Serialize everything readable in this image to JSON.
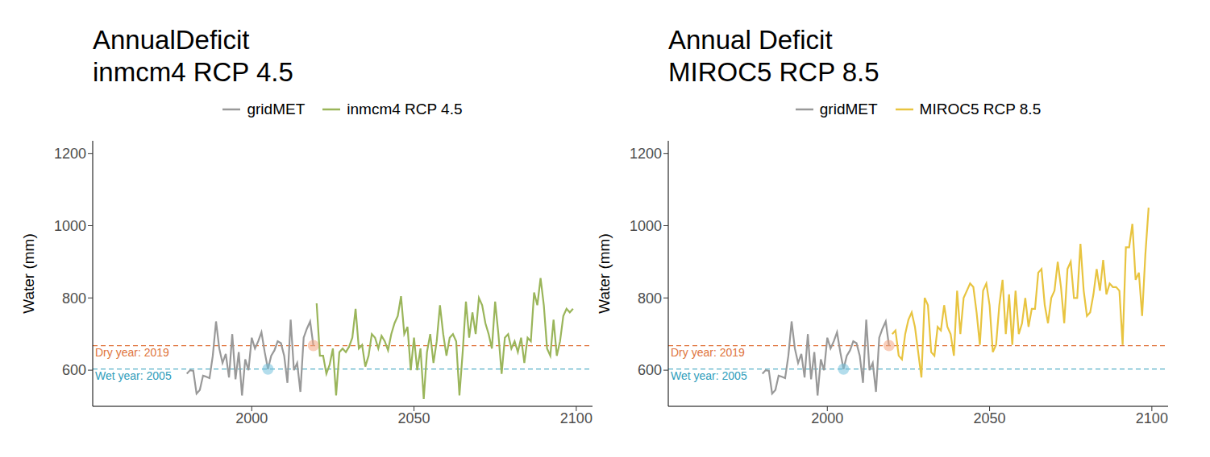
{
  "chart_data": [
    {
      "type": "line",
      "title": "AnnualDeficit",
      "subtitle": "inmcm4 RCP 4.5",
      "y_label": "Water (mm)",
      "legend": "top",
      "x": [
        1980,
        1981,
        1982,
        1983,
        1984,
        1985,
        1986,
        1987,
        1988,
        1989,
        1990,
        1991,
        1992,
        1993,
        1994,
        1995,
        1996,
        1997,
        1998,
        1999,
        2000,
        2001,
        2002,
        2003,
        2004,
        2005,
        2006,
        2007,
        2008,
        2009,
        2010,
        2011,
        2012,
        2013,
        2014,
        2015,
        2016,
        2017,
        2018,
        2019,
        2020,
        2021,
        2022,
        2023,
        2024,
        2025,
        2026,
        2027,
        2028,
        2029,
        2030,
        2031,
        2032,
        2033,
        2034,
        2035,
        2036,
        2037,
        2038,
        2039,
        2040,
        2041,
        2042,
        2043,
        2044,
        2045,
        2046,
        2047,
        2048,
        2049,
        2050,
        2051,
        2052,
        2053,
        2054,
        2055,
        2056,
        2057,
        2058,
        2059,
        2060,
        2061,
        2062,
        2063,
        2064,
        2065,
        2066,
        2067,
        2068,
        2069,
        2070,
        2071,
        2072,
        2073,
        2074,
        2075,
        2076,
        2077,
        2078,
        2079,
        2080,
        2081,
        2082,
        2083,
        2084,
        2085,
        2086,
        2087,
        2088,
        2089,
        2090,
        2091,
        2092,
        2093,
        2094,
        2095,
        2096,
        2097,
        2098,
        2099
      ],
      "series": [
        {
          "name": "gridMET",
          "color": "#999999",
          "values": [
            590,
            600,
            598,
            535,
            545,
            585,
            582,
            578,
            640,
            735,
            660,
            620,
            645,
            580,
            700,
            575,
            650,
            530,
            630,
            600,
            690,
            660,
            680,
            705,
            650,
            603,
            640,
            655,
            680,
            675,
            640,
            565,
            740,
            600,
            620,
            540,
            690,
            715,
            735,
            668,
            null,
            null,
            null,
            null,
            null,
            null,
            null,
            null,
            null,
            null,
            null,
            null,
            null,
            null,
            null,
            null,
            null,
            null,
            null,
            null,
            null,
            null,
            null,
            null,
            null,
            null,
            null,
            null,
            null,
            null,
            null,
            null,
            null,
            null,
            null,
            null,
            null,
            null,
            null,
            null,
            null,
            null,
            null,
            null,
            null,
            null,
            null,
            null,
            null,
            null,
            null,
            null,
            null,
            null,
            null,
            null,
            null,
            null,
            null,
            null,
            null,
            null,
            null,
            null,
            null,
            null,
            null,
            null,
            null,
            null,
            null,
            null,
            null,
            null,
            null,
            null,
            null,
            null,
            null,
            null
          ]
        },
        {
          "name": "inmcm4 RCP 4.5",
          "color": "#9ab55a",
          "values": [
            null,
            null,
            null,
            null,
            null,
            null,
            null,
            null,
            null,
            null,
            null,
            null,
            null,
            null,
            null,
            null,
            null,
            null,
            null,
            null,
            null,
            null,
            null,
            null,
            null,
            null,
            null,
            null,
            null,
            null,
            null,
            null,
            null,
            null,
            null,
            null,
            null,
            null,
            null,
            null,
            785,
            640,
            640,
            590,
            615,
            660,
            530,
            650,
            660,
            650,
            665,
            690,
            770,
            660,
            670,
            610,
            640,
            700,
            690,
            660,
            695,
            680,
            655,
            700,
            730,
            750,
            805,
            700,
            720,
            600,
            690,
            600,
            660,
            520,
            650,
            700,
            620,
            680,
            780,
            700,
            640,
            690,
            700,
            680,
            530,
            650,
            790,
            690,
            760,
            700,
            800,
            780,
            730,
            700,
            660,
            790,
            700,
            590,
            690,
            700,
            660,
            680,
            650,
            690,
            620,
            690,
            680,
            815,
            780,
            855,
            780,
            660,
            640,
            740,
            640,
            680,
            750,
            770,
            760,
            770
          ]
        }
      ],
      "xlim": [
        1951,
        2105
      ],
      "xticks": [
        2000,
        2050,
        2100
      ],
      "ylim": [
        500,
        1235
      ],
      "yticks": [
        600,
        800,
        1000,
        1200
      ],
      "reference_lines": [
        {
          "label": "Dry year: 2019",
          "value": 668,
          "color": "#e0743c",
          "line_style": "dashed"
        },
        {
          "label": "Wet year: 2005",
          "value": 603,
          "color": "#2f9dbb",
          "line_style": "dashed"
        }
      ],
      "highlights": [
        {
          "x": 2019,
          "y": 668,
          "color": "#f4a582"
        },
        {
          "x": 2005,
          "y": 603,
          "color": "#74c1dd"
        }
      ]
    },
    {
      "type": "line",
      "title": "Annual Deficit",
      "subtitle": "MIROC5 RCP 8.5",
      "y_label": "Water (mm)",
      "legend": "top",
      "x": [
        1980,
        1981,
        1982,
        1983,
        1984,
        1985,
        1986,
        1987,
        1988,
        1989,
        1990,
        1991,
        1992,
        1993,
        1994,
        1995,
        1996,
        1997,
        1998,
        1999,
        2000,
        2001,
        2002,
        2003,
        2004,
        2005,
        2006,
        2007,
        2008,
        2009,
        2010,
        2011,
        2012,
        2013,
        2014,
        2015,
        2016,
        2017,
        2018,
        2019,
        2020,
        2021,
        2022,
        2023,
        2024,
        2025,
        2026,
        2027,
        2028,
        2029,
        2030,
        2031,
        2032,
        2033,
        2034,
        2035,
        2036,
        2037,
        2038,
        2039,
        2040,
        2041,
        2042,
        2043,
        2044,
        2045,
        2046,
        2047,
        2048,
        2049,
        2050,
        2051,
        2052,
        2053,
        2054,
        2055,
        2056,
        2057,
        2058,
        2059,
        2060,
        2061,
        2062,
        2063,
        2064,
        2065,
        2066,
        2067,
        2068,
        2069,
        2070,
        2071,
        2072,
        2073,
        2074,
        2075,
        2076,
        2077,
        2078,
        2079,
        2080,
        2081,
        2082,
        2083,
        2084,
        2085,
        2086,
        2087,
        2088,
        2089,
        2090,
        2091,
        2092,
        2093,
        2094,
        2095,
        2096,
        2097,
        2098,
        2099
      ],
      "series": [
        {
          "name": "gridMET",
          "color": "#999999",
          "values": [
            590,
            600,
            598,
            535,
            545,
            585,
            582,
            578,
            640,
            735,
            660,
            620,
            645,
            580,
            700,
            575,
            650,
            530,
            630,
            600,
            690,
            660,
            680,
            705,
            650,
            603,
            640,
            655,
            680,
            675,
            640,
            565,
            740,
            600,
            620,
            540,
            690,
            715,
            735,
            668,
            null,
            null,
            null,
            null,
            null,
            null,
            null,
            null,
            null,
            null,
            null,
            null,
            null,
            null,
            null,
            null,
            null,
            null,
            null,
            null,
            null,
            null,
            null,
            null,
            null,
            null,
            null,
            null,
            null,
            null,
            null,
            null,
            null,
            null,
            null,
            null,
            null,
            null,
            null,
            null,
            null,
            null,
            null,
            null,
            null,
            null,
            null,
            null,
            null,
            null,
            null,
            null,
            null,
            null,
            null,
            null,
            null,
            null,
            null,
            null,
            null,
            null,
            null,
            null,
            null,
            null,
            null,
            null,
            null,
            null,
            null,
            null,
            null,
            null,
            null,
            null,
            null,
            null,
            null,
            null
          ]
        },
        {
          "name": "MIROC5 RCP 8.5",
          "color": "#e8c440",
          "values": [
            null,
            null,
            null,
            null,
            null,
            null,
            null,
            null,
            null,
            null,
            null,
            null,
            null,
            null,
            null,
            null,
            null,
            null,
            null,
            null,
            null,
            null,
            null,
            null,
            null,
            null,
            null,
            null,
            null,
            null,
            null,
            null,
            null,
            null,
            null,
            null,
            null,
            null,
            null,
            null,
            700,
            710,
            640,
            630,
            700,
            740,
            760,
            720,
            650,
            580,
            800,
            780,
            650,
            640,
            720,
            710,
            780,
            720,
            700,
            640,
            820,
            700,
            800,
            820,
            840,
            830,
            760,
            670,
            820,
            840,
            780,
            650,
            670,
            780,
            850,
            700,
            810,
            670,
            820,
            700,
            730,
            800,
            720,
            770,
            770,
            870,
            880,
            780,
            730,
            800,
            820,
            900,
            830,
            730,
            880,
            900,
            800,
            800,
            950,
            820,
            750,
            760,
            810,
            880,
            820,
            905,
            810,
            840,
            830,
            830,
            820,
            670,
            940,
            940,
            1005,
            850,
            870,
            750,
            920,
            1050
          ]
        }
      ],
      "xlim": [
        1951,
        2105
      ],
      "xticks": [
        2000,
        2050,
        2100
      ],
      "ylim": [
        500,
        1235
      ],
      "yticks": [
        600,
        800,
        1000,
        1200
      ],
      "reference_lines": [
        {
          "label": "Dry year: 2019",
          "value": 668,
          "color": "#e0743c",
          "line_style": "dashed"
        },
        {
          "label": "Wet year: 2005",
          "value": 603,
          "color": "#2f9dbb",
          "line_style": "dashed"
        }
      ],
      "highlights": [
        {
          "x": 2019,
          "y": 668,
          "color": "#f4a582"
        },
        {
          "x": 2005,
          "y": 603,
          "color": "#74c1dd"
        }
      ]
    }
  ]
}
